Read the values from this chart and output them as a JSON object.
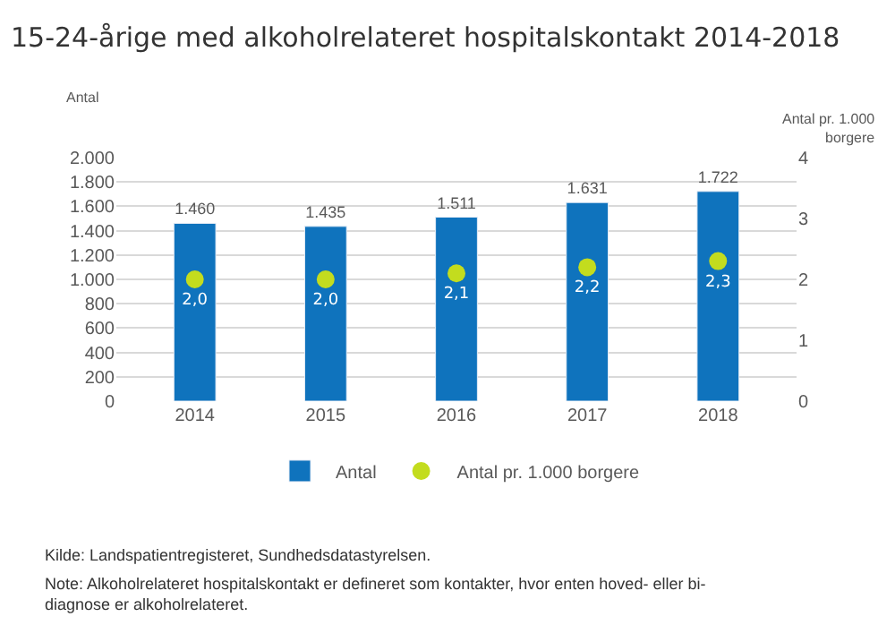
{
  "chart_data": {
    "type": "bar",
    "title": "15-24-årige med alkoholrelateret hospitalskontakt 2014-2018",
    "categories": [
      "2014",
      "2015",
      "2016",
      "2017",
      "2018"
    ],
    "series": [
      {
        "name": "Antal",
        "color": "#0f73bd",
        "values": [
          1460,
          1435,
          1511,
          1631,
          1722
        ],
        "value_labels": [
          "1.460",
          "1.435",
          "1.511",
          "1.631",
          "1.722"
        ]
      },
      {
        "name": "Antal pr. 1.000 borgere",
        "type": "scatter",
        "axis": "y2",
        "color": "#c3dc1e",
        "values": [
          2.0,
          2.0,
          2.1,
          2.2,
          2.3
        ],
        "value_labels": [
          "2,0",
          "2,0",
          "2,1",
          "2,2",
          "2,3"
        ]
      }
    ],
    "ylabel": "Antal",
    "y2label": "Antal pr. 1.000 borgere",
    "ylim": [
      0,
      2000
    ],
    "yticks": [
      0,
      200,
      400,
      600,
      800,
      {
        "value": 1000,
        "label": "1.000"
      },
      {
        "value": 1200,
        "label": "1.200"
      },
      {
        "value": 1400,
        "label": "1.400"
      },
      {
        "value": 1600,
        "label": "1.600"
      },
      {
        "value": 1800,
        "label": "1.800"
      },
      {
        "value": 2000,
        "label": "2.000"
      }
    ],
    "y2lim": [
      0,
      4
    ],
    "y2ticks": [
      0,
      1,
      2,
      3,
      4
    ],
    "grid": "y",
    "legend": "bottom",
    "marker": "circle",
    "annotations": [
      "Kilde: Landspatientregisteret, Sundhedsdatastyrelsen.",
      "Note: Alkoholrelateret hospitalskontakt er defineret som kontakter, hvor enten hoved- eller bi-diagnose er alkoholrelateret."
    ]
  }
}
